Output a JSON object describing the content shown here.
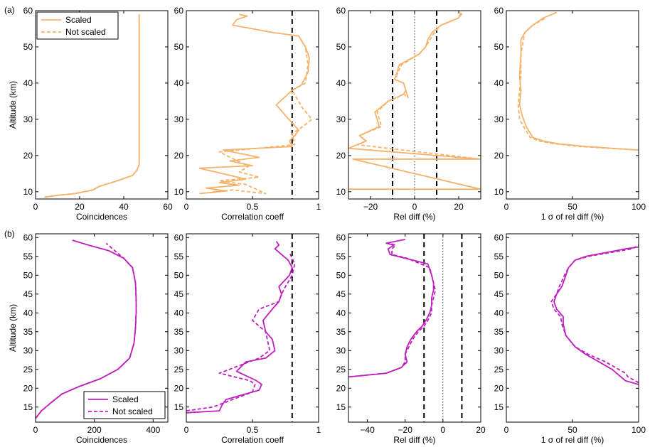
{
  "figure": {
    "row_labels": [
      "(a)",
      "(b)"
    ],
    "legend_a": {
      "scaled": "Scaled",
      "not_scaled": "Not scaled"
    },
    "legend_b": {
      "scaled": "Scaled",
      "not_scaled": "Not scaled"
    },
    "colors": {
      "row_a": "#f5b26b",
      "row_b": "#bf1fbf",
      "reference": "#000000"
    }
  },
  "chart_data": [
    {
      "id": "a1",
      "type": "line",
      "xlabel": "Coincidences",
      "ylabel": "Altitude (km)",
      "xlim": [
        0,
        60
      ],
      "ylim": [
        8,
        60
      ],
      "xticks": [
        0,
        20,
        40,
        60
      ],
      "yticks": [
        10,
        20,
        30,
        40,
        50,
        60
      ],
      "legend": "top-left",
      "series": [
        {
          "name": "Scaled",
          "style": "solid",
          "x": [
            4,
            10,
            18,
            26,
            29,
            36,
            44,
            46,
            47,
            47,
            47,
            47
          ],
          "y": [
            8.5,
            9,
            9.5,
            10.5,
            11.5,
            12.8,
            14.5,
            16,
            17.5,
            25,
            40,
            59
          ]
        },
        {
          "name": "Not scaled",
          "style": "dashed",
          "x": [
            4,
            10,
            18,
            26,
            29,
            36,
            44,
            46,
            47,
            47,
            47,
            47
          ],
          "y": [
            8.5,
            9,
            9.5,
            10.5,
            11.5,
            12.8,
            14.5,
            16,
            17.5,
            25,
            40,
            59
          ]
        }
      ]
    },
    {
      "id": "a2",
      "type": "line",
      "xlabel": "Correlation coeff",
      "ylabel": "",
      "xlim": [
        0,
        1
      ],
      "ylim": [
        8,
        60
      ],
      "xticks": [
        0,
        0.5,
        1
      ],
      "xticklabels": [
        "0",
        "0.5",
        "1"
      ],
      "yticks": [
        10,
        20,
        30,
        40,
        50,
        60
      ],
      "reference_lines": {
        "x": [
          0.8
        ]
      },
      "series": [
        {
          "name": "Scaled",
          "style": "solid",
          "x": [
            0.1,
            0.3,
            0.15,
            0.4,
            0.25,
            0.45,
            0.1,
            0.5,
            0.33,
            0.55,
            0.28,
            0.8,
            0.78,
            0.82,
            0.85,
            0.8,
            0.75,
            0.68,
            0.8,
            0.87,
            0.92,
            0.93,
            0.9,
            0.85,
            0.65,
            0.5,
            0.35,
            0.38,
            0.46,
            0.4
          ],
          "y": [
            9.5,
            10.2,
            11,
            11.8,
            12.5,
            13.5,
            16.5,
            17.2,
            18.5,
            19.5,
            21.5,
            22.5,
            24,
            25.5,
            27,
            29,
            31,
            34,
            38,
            39.5,
            43,
            47,
            50,
            53,
            54,
            55,
            56,
            57.5,
            58.5,
            59
          ]
        },
        {
          "name": "Not scaled",
          "style": "dashed",
          "x": [
            0.2,
            0.35,
            0.6,
            0.45,
            0.25,
            0.55,
            0.4,
            0.47,
            0.25,
            0.82,
            0.8,
            0.88,
            0.95,
            0.88,
            0.8,
            0.9,
            0.92,
            0.9,
            0.85
          ],
          "y": [
            10,
            10.5,
            9.5,
            12,
            13,
            14,
            15.5,
            17,
            21,
            23,
            26,
            28,
            30,
            33,
            38,
            40,
            45,
            50,
            53
          ]
        }
      ]
    },
    {
      "id": "a3",
      "type": "line",
      "xlabel": "Rel diff (%)",
      "ylabel": "",
      "xlim": [
        -30,
        30
      ],
      "ylim": [
        8,
        60
      ],
      "xticks": [
        -20,
        0,
        20
      ],
      "yticks": [
        10,
        20,
        30,
        40,
        50,
        60
      ],
      "reference_lines": {
        "x": [
          -10,
          0,
          10
        ]
      },
      "series": [
        {
          "name": "Scaled",
          "style": "solid",
          "x": [
            -30,
            30,
            -28,
            30,
            -30,
            -26,
            -22,
            -25,
            -16,
            -18,
            -12,
            -8,
            -5,
            -4,
            -3,
            -5,
            -9,
            -7,
            2,
            5,
            6,
            8,
            12,
            20,
            21
          ],
          "y": [
            10.7,
            10.7,
            19,
            19,
            22,
            23,
            24,
            25.5,
            28,
            32,
            35,
            36,
            37,
            38,
            36,
            40,
            41,
            45,
            48,
            50,
            52,
            54,
            56,
            58,
            59.5
          ]
        },
        {
          "name": "Not scaled",
          "style": "dashed",
          "x": [
            -28,
            30,
            -26,
            -22,
            -25,
            -15,
            -17,
            -12,
            -8,
            -5,
            -3,
            -5,
            -9,
            -6,
            2,
            5,
            7,
            9,
            12,
            20,
            22
          ],
          "y": [
            19,
            19,
            23,
            24,
            25.5,
            28,
            32,
            35,
            36,
            37,
            36,
            40,
            41,
            45,
            48,
            50,
            52,
            54,
            56,
            58,
            59.5
          ]
        }
      ]
    },
    {
      "id": "a4",
      "type": "line",
      "xlabel": "1 σ of rel diff (%)",
      "ylabel": "",
      "xlim": [
        0,
        100
      ],
      "ylim": [
        8,
        60
      ],
      "xticks": [
        0,
        50,
        100
      ],
      "yticks": [
        10,
        20,
        30,
        40,
        50,
        60
      ],
      "series": [
        {
          "name": "Scaled",
          "style": "solid",
          "x": [
            100,
            60,
            40,
            28,
            20,
            15,
            12,
            10,
            11,
            10,
            11,
            11,
            14,
            20,
            28,
            38
          ],
          "y": [
            21.5,
            22.5,
            23.2,
            24,
            25,
            28,
            31,
            34,
            38,
            42,
            48,
            52,
            54,
            56,
            58,
            59.5
          ]
        },
        {
          "name": "Not scaled",
          "style": "dashed",
          "x": [
            100,
            55,
            35,
            25,
            18,
            13,
            10,
            9,
            10,
            11,
            11,
            14,
            20,
            30
          ],
          "y": [
            21.5,
            22.5,
            23.3,
            24,
            25,
            28,
            30,
            34,
            38,
            42,
            48,
            54,
            56,
            58
          ]
        }
      ]
    },
    {
      "id": "b1",
      "type": "line",
      "xlabel": "Coincidences",
      "ylabel": "Altitude (km)",
      "xlim": [
        0,
        450
      ],
      "ylim": [
        11,
        61
      ],
      "xticks": [
        0,
        200,
        400
      ],
      "yticks": [
        15,
        20,
        25,
        30,
        35,
        40,
        45,
        50,
        55,
        60
      ],
      "legend": "bottom-right",
      "series": [
        {
          "name": "Scaled",
          "style": "solid",
          "x": [
            0,
            20,
            50,
            90,
            150,
            220,
            280,
            320,
            335,
            340,
            342,
            342,
            340,
            330,
            300,
            250,
            180,
            125
          ],
          "y": [
            12,
            14,
            16,
            18.5,
            20.5,
            22.5,
            25,
            28,
            32,
            36,
            40,
            44,
            48,
            52,
            54.5,
            56.5,
            58,
            59.3
          ]
        },
        {
          "name": "Not scaled",
          "style": "dashed",
          "x": [
            0,
            20,
            50,
            90,
            150,
            220,
            280,
            320,
            335,
            340,
            342,
            342,
            340,
            330,
            300,
            270,
            240
          ],
          "y": [
            12,
            14,
            16,
            18.5,
            20.5,
            22.5,
            25,
            28,
            32,
            36,
            40,
            44,
            48,
            52,
            54.5,
            56.5,
            58.5
          ]
        }
      ]
    },
    {
      "id": "b2",
      "type": "line",
      "xlabel": "Correlation coeff",
      "ylabel": "",
      "xlim": [
        0,
        1
      ],
      "ylim": [
        11,
        61
      ],
      "xticks": [
        0,
        0.5,
        1
      ],
      "xticklabels": [
        "0",
        "0.5",
        "1"
      ],
      "yticks": [
        15,
        20,
        25,
        30,
        35,
        40,
        45,
        50,
        55,
        60
      ],
      "reference_lines": {
        "x": [
          0.8
        ]
      },
      "series": [
        {
          "name": "Scaled",
          "style": "solid",
          "x": [
            0.0,
            0.25,
            0.27,
            0.3,
            0.45,
            0.55,
            0.57,
            0.53,
            0.5,
            0.38,
            0.45,
            0.6,
            0.67,
            0.65,
            0.6,
            0.58,
            0.65,
            0.7,
            0.72,
            0.7,
            0.78,
            0.8,
            0.77,
            0.67,
            0.7,
            0.68
          ],
          "y": [
            13.5,
            14,
            15.5,
            17,
            18.5,
            19.5,
            21,
            22,
            22.5,
            24.5,
            27,
            28,
            30,
            33,
            35,
            38,
            41,
            43,
            45,
            47,
            50,
            52,
            54,
            57,
            58,
            59
          ]
        },
        {
          "name": "Not scaled",
          "style": "dashed",
          "x": [
            0.0,
            0.2,
            0.35,
            0.5,
            0.52,
            0.48,
            0.25,
            0.4,
            0.55,
            0.63,
            0.6,
            0.5,
            0.55,
            0.7,
            0.72,
            0.75,
            0.8,
            0.82,
            0.78
          ],
          "y": [
            14,
            15,
            17,
            19,
            21,
            22,
            24,
            26,
            28,
            30,
            35,
            38,
            41,
            43,
            45,
            47,
            50,
            53,
            56
          ]
        }
      ]
    },
    {
      "id": "b3",
      "type": "line",
      "xlabel": "Rel diff (%)",
      "ylabel": "",
      "xlim": [
        -50,
        20
      ],
      "ylim": [
        11,
        61
      ],
      "xticks": [
        -40,
        -20,
        0,
        20
      ],
      "yticks": [
        15,
        20,
        25,
        30,
        35,
        40,
        45,
        50,
        55,
        60
      ],
      "reference_lines": {
        "x": [
          -10,
          0,
          10
        ]
      },
      "series": [
        {
          "name": "Scaled",
          "style": "solid",
          "x": [
            -50,
            -30,
            -22,
            -19,
            -20,
            -19,
            -17,
            -14,
            -11,
            -9,
            -7,
            -6,
            -6,
            -5,
            -5,
            -6,
            -8,
            -20,
            -28,
            -29,
            -26,
            -30,
            -20
          ],
          "y": [
            23,
            24,
            25.5,
            27,
            29,
            31,
            33,
            35,
            36.5,
            38,
            40,
            42,
            44,
            46,
            48,
            50,
            53,
            54.5,
            55.5,
            57,
            58,
            58.5,
            59.5
          ]
        },
        {
          "name": "Not scaled",
          "style": "dashed",
          "x": [
            -50,
            -30,
            -22,
            -20,
            -20,
            -18,
            -16,
            -13,
            -10,
            -8,
            -6,
            -6,
            -5,
            -4,
            -5,
            -7,
            -19,
            -27,
            -27,
            -25,
            -29
          ],
          "y": [
            23,
            24,
            25.5,
            27,
            29,
            31,
            33,
            35,
            36.5,
            38,
            40,
            42,
            44,
            46,
            48,
            52,
            54.5,
            55.5,
            57,
            58,
            58.5
          ]
        }
      ]
    },
    {
      "id": "b4",
      "type": "line",
      "xlabel": "1 σ of rel diff (%)",
      "ylabel": "",
      "xlim": [
        0,
        100
      ],
      "ylim": [
        11,
        61
      ],
      "xticks": [
        0,
        50,
        100
      ],
      "yticks": [
        15,
        20,
        25,
        30,
        35,
        40,
        45,
        50,
        55,
        60
      ],
      "series": [
        {
          "name": "Scaled",
          "style": "solid",
          "x": [
            100,
            90,
            85,
            80,
            70,
            60,
            52,
            45,
            43,
            43,
            38,
            36,
            38,
            42,
            45,
            47,
            52,
            60,
            75,
            90,
            100
          ],
          "y": [
            21,
            22,
            23.5,
            25,
            27,
            29,
            31,
            34,
            37,
            39,
            41,
            43,
            45,
            47,
            50,
            52,
            54,
            55,
            56,
            57,
            57.5
          ]
        },
        {
          "name": "Not scaled",
          "style": "dashed",
          "x": [
            100,
            92,
            90,
            85,
            75,
            62,
            52,
            45,
            42,
            41,
            36,
            34,
            38,
            40,
            44,
            47,
            52,
            62,
            78,
            95,
            100
          ],
          "y": [
            21.5,
            23,
            24,
            25,
            27,
            29,
            31,
            34,
            37,
            39,
            41,
            43,
            45,
            47,
            50,
            52,
            54,
            55,
            56,
            57,
            58
          ]
        }
      ]
    }
  ]
}
